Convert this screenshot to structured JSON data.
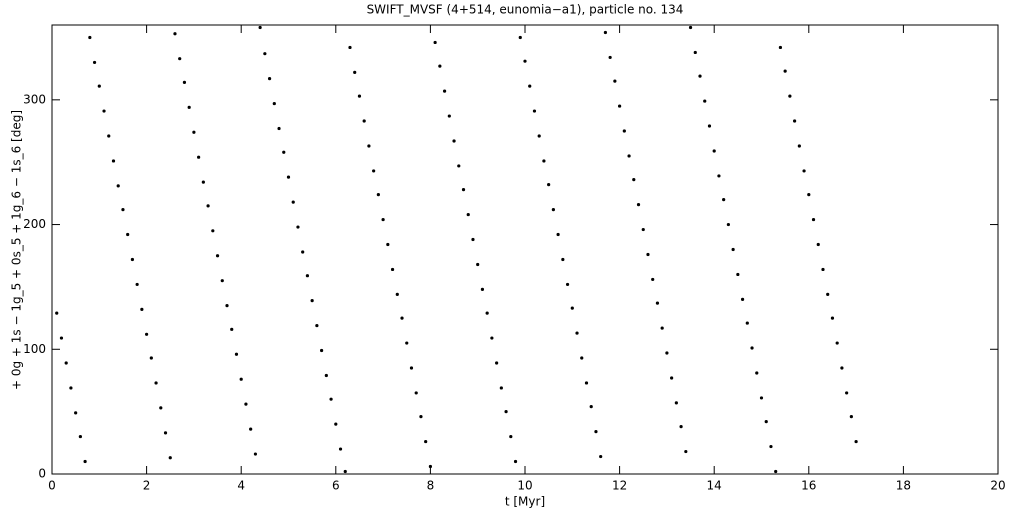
{
  "chart_data": {
    "type": "scatter",
    "title": "SWIFT_MVSF (4+514, eunomia−a1), particle no. 134",
    "xlabel": "t [Myr]",
    "ylabel": "+ 0g + 1s − 1g_5 + 0s_5 + 1g_6 − 1s_6 [deg]",
    "color": "#000000",
    "xlim": [
      0,
      20
    ],
    "xticks": [
      0,
      2,
      4,
      6,
      8,
      10,
      12,
      14,
      16,
      18,
      20
    ],
    "ylim": [
      0,
      360
    ],
    "yticks": [
      0,
      100,
      200,
      300
    ],
    "x": [
      0.1,
      0.2,
      0.3,
      0.4,
      0.5,
      0.6,
      0.7,
      0.8,
      0.9,
      1.0,
      1.1,
      1.2,
      1.3,
      1.4,
      1.5,
      1.6,
      1.7,
      1.8,
      1.9,
      2.0,
      2.1,
      2.2,
      2.3,
      2.4,
      2.5,
      2.6,
      2.7,
      2.8,
      2.9,
      3.0,
      3.1,
      3.2,
      3.3,
      3.4,
      3.5,
      3.6,
      3.7,
      3.8,
      3.9,
      4.0,
      4.1,
      4.2,
      4.3,
      4.4,
      4.5,
      4.6,
      4.7,
      4.8,
      4.9,
      5.0,
      5.1,
      5.2,
      5.3,
      5.4,
      5.5,
      5.6,
      5.7,
      5.8,
      5.9,
      6.0,
      6.1,
      6.2,
      6.3,
      6.4,
      6.5,
      6.6,
      6.7,
      6.8,
      6.9,
      7.0,
      7.1,
      7.2,
      7.3,
      7.4,
      7.5,
      7.6,
      7.7,
      7.8,
      7.9,
      8.0,
      8.1,
      8.2,
      8.3,
      8.4,
      8.5,
      8.6,
      8.7,
      8.8,
      8.9,
      9.0,
      9.1,
      9.2,
      9.3,
      9.4,
      9.5,
      9.6,
      9.7,
      9.8,
      9.9,
      10.0,
      10.1,
      10.2,
      10.3,
      10.4,
      10.5,
      10.6,
      10.7,
      10.8,
      10.9,
      11.0,
      11.1,
      11.2,
      11.3,
      11.4,
      11.5,
      11.6,
      11.7,
      11.8,
      11.9,
      12.0,
      12.1,
      12.2,
      12.3,
      12.4,
      12.5,
      12.6,
      12.7,
      12.8,
      12.9,
      13.0,
      13.1,
      13.2,
      13.3,
      13.4,
      13.5,
      13.6,
      13.7,
      13.8,
      13.9,
      14.0,
      14.1,
      14.2,
      14.3,
      14.4,
      14.5,
      14.6,
      14.7,
      14.8,
      14.9,
      15.0,
      15.1,
      15.2,
      15.3,
      15.4,
      15.5,
      15.6,
      15.7,
      15.8,
      15.9,
      16.0,
      16.1,
      16.2,
      16.3,
      16.4,
      16.5,
      16.6,
      16.7,
      16.8,
      16.9,
      17.0
    ],
    "values": [
      129,
      109,
      89,
      69,
      49,
      30,
      10,
      350,
      330,
      311,
      291,
      271,
      251,
      231,
      212,
      192,
      172,
      152,
      132,
      112,
      93,
      73,
      53,
      33,
      13,
      353,
      333,
      314,
      294,
      274,
      254,
      234,
      215,
      195,
      175,
      155,
      135,
      116,
      96,
      76,
      56,
      36,
      16,
      358,
      337,
      317,
      297,
      277,
      258,
      238,
      218,
      198,
      178,
      159,
      139,
      119,
      99,
      79,
      60,
      40,
      20,
      2,
      342,
      322,
      303,
      283,
      263,
      243,
      224,
      204,
      184,
      164,
      144,
      125,
      105,
      85,
      65,
      46,
      26,
      6,
      346,
      327,
      307,
      287,
      267,
      247,
      228,
      208,
      188,
      168,
      148,
      129,
      109,
      89,
      69,
      50,
      30,
      10,
      350,
      331,
      311,
      291,
      271,
      251,
      232,
      212,
      192,
      172,
      152,
      133,
      113,
      93,
      73,
      54,
      34,
      14,
      354,
      334,
      315,
      295,
      275,
      255,
      236,
      216,
      196,
      176,
      156,
      137,
      117,
      97,
      77,
      57,
      38,
      18,
      358,
      338,
      319,
      299,
      279,
      259,
      239,
      220,
      200,
      180,
      160,
      140,
      121,
      101,
      81,
      61,
      42,
      22,
      2,
      342,
      323,
      303,
      283,
      263,
      243,
      224,
      204,
      184,
      164,
      144,
      125,
      105,
      85,
      65,
      46,
      26
    ]
  }
}
